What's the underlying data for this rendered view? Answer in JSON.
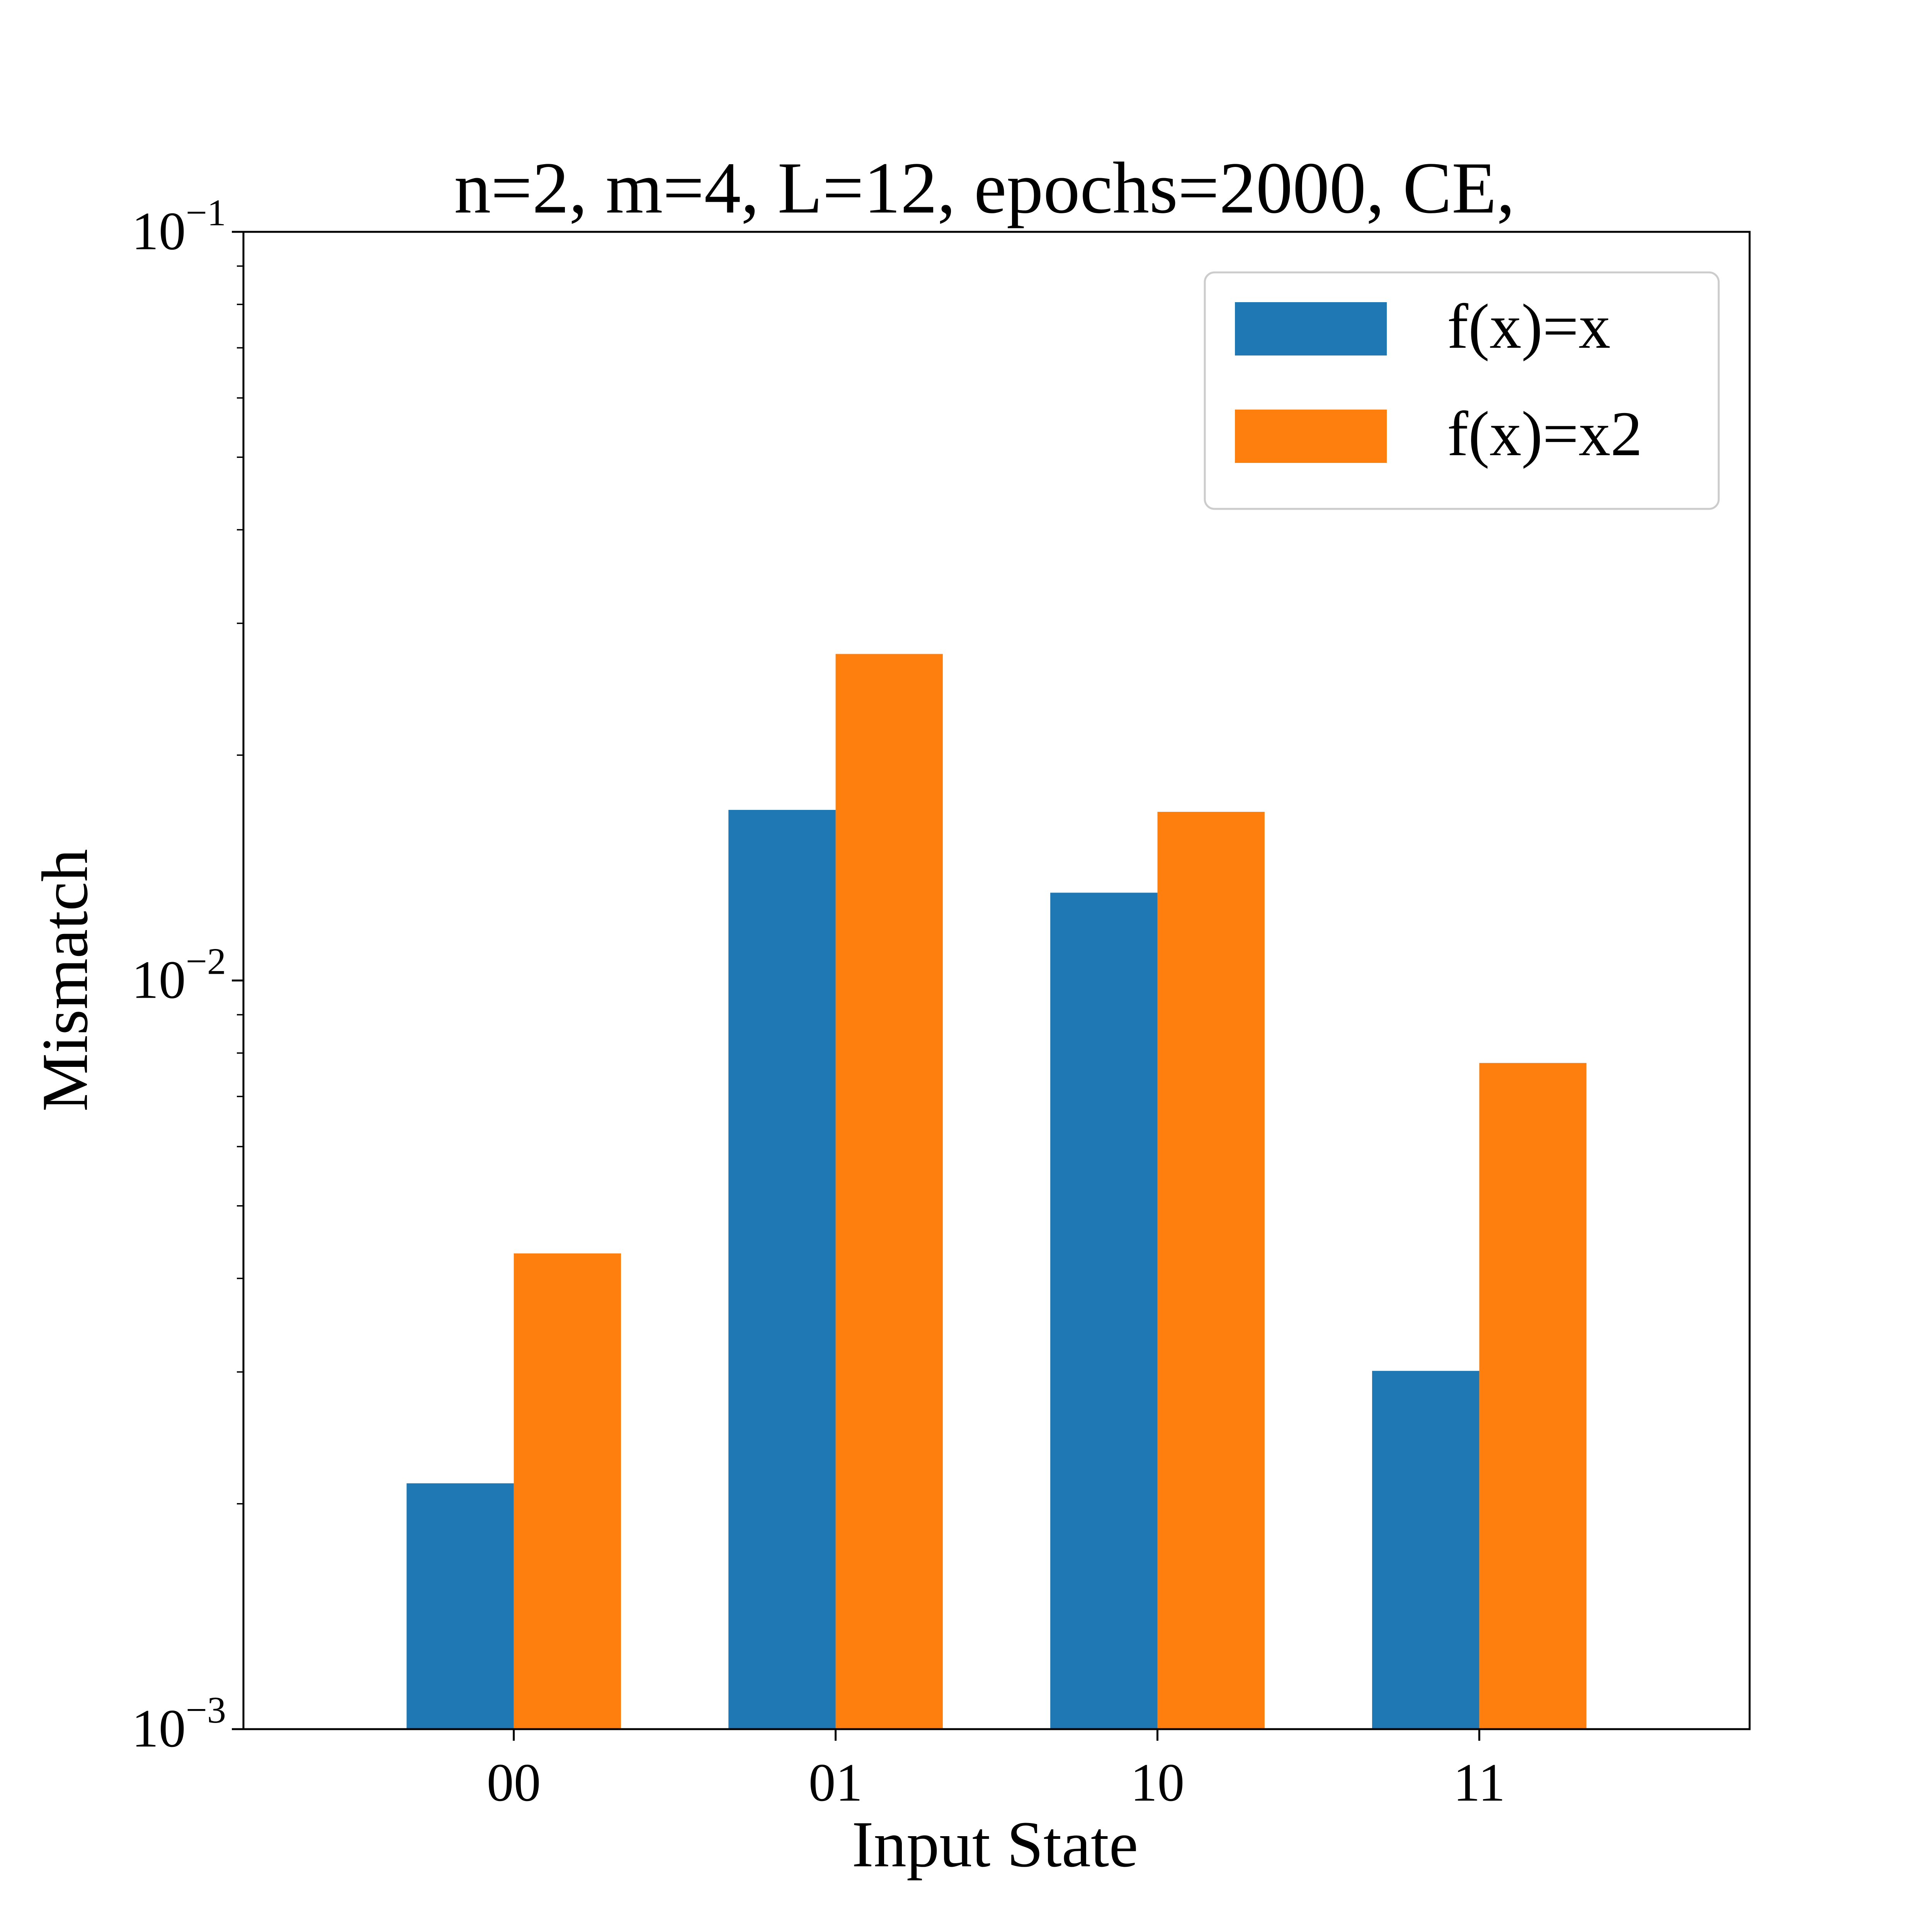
{
  "chart_data": {
    "type": "bar",
    "title": "n=2, m=4, L=12, epochs=2000, CE,",
    "xlabel": "Input State",
    "ylabel": "Mismatch",
    "categories": [
      "00",
      "01",
      "10",
      "11"
    ],
    "series": [
      {
        "name": "f(x)=x",
        "color": "#1f77b4",
        "values": [
          0.00213,
          0.0169,
          0.0131,
          0.00301
        ]
      },
      {
        "name": "f(x)=x2",
        "color": "#ff7f0e",
        "values": [
          0.00432,
          0.0273,
          0.0168,
          0.00776
        ]
      }
    ],
    "yscale": "log",
    "ylim": [
      0.001,
      0.1
    ],
    "yticks": [
      {
        "value": 0.001,
        "base": "10",
        "exp": "−3"
      },
      {
        "value": 0.01,
        "base": "10",
        "exp": "−2"
      },
      {
        "value": 0.1,
        "base": "10",
        "exp": "−1"
      }
    ],
    "grid": false,
    "legend_position": "top-right"
  }
}
